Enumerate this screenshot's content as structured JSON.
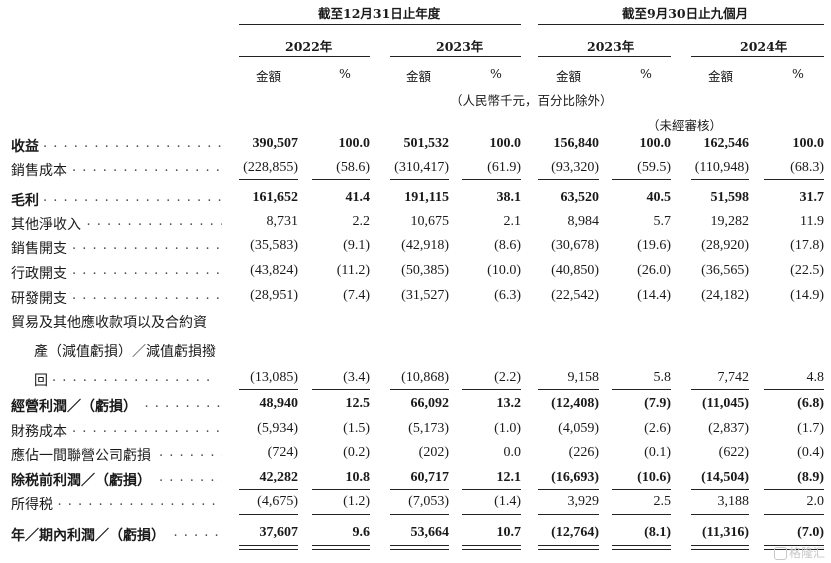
{
  "header": {
    "period_full_year": "截至12月31日止年度",
    "period_nine_months": "截至9月30日止九個月",
    "years": [
      "2022年",
      "2023年",
      "2023年",
      "2024年"
    ],
    "col_amount": "金額",
    "col_percent": "%",
    "unit_note": "（人民幣千元，百分比除外）",
    "unaudited": "（未經審核）"
  },
  "rows": [
    {
      "label": "收益",
      "bold": true,
      "vals": [
        "390,507",
        "100.0",
        "501,532",
        "100.0",
        "156,840",
        "100.0",
        "162,546",
        "100.0"
      ]
    },
    {
      "label": "銷售成本",
      "bold": false,
      "vals": [
        "(228,855)",
        "(58.6)",
        "(310,417)",
        "(61.9)",
        "(93,320)",
        "(59.5)",
        "(110,948)",
        "(68.3)"
      ]
    },
    {
      "label": "毛利",
      "bold": true,
      "vals": [
        "161,652",
        "41.4",
        "191,115",
        "38.1",
        "63,520",
        "40.5",
        "51,598",
        "31.7"
      ]
    },
    {
      "label": "其他淨收入",
      "bold": false,
      "vals": [
        "8,731",
        "2.2",
        "10,675",
        "2.1",
        "8,984",
        "5.7",
        "19,282",
        "11.9"
      ]
    },
    {
      "label": "銷售開支",
      "bold": false,
      "vals": [
        "(35,583)",
        "(9.1)",
        "(42,918)",
        "(8.6)",
        "(30,678)",
        "(19.6)",
        "(28,920)",
        "(17.8)"
      ]
    },
    {
      "label": "行政開支",
      "bold": false,
      "vals": [
        "(43,824)",
        "(11.2)",
        "(50,385)",
        "(10.0)",
        "(40,850)",
        "(26.0)",
        "(36,565)",
        "(22.5)"
      ]
    },
    {
      "label": "研發開支",
      "bold": false,
      "vals": [
        "(28,951)",
        "(7.4)",
        "(31,527)",
        "(6.3)",
        "(22,542)",
        "(14.4)",
        "(24,182)",
        "(14.9)"
      ]
    },
    {
      "label_lines": [
        "貿易及其他應收款項以及合約資",
        "產（減值虧損）／減值虧損撥",
        "回"
      ],
      "bold": false,
      "vals": [
        "(13,085)",
        "(3.4)",
        "(10,868)",
        "(2.2)",
        "9,158",
        "5.8",
        "7,742",
        "4.8"
      ]
    },
    {
      "label": "經營利潤／（虧損）",
      "bold": true,
      "vals": [
        "48,940",
        "12.5",
        "66,092",
        "13.2",
        "(12,408)",
        "(7.9)",
        "(11,045)",
        "(6.8)"
      ]
    },
    {
      "label": "財務成本",
      "bold": false,
      "vals": [
        "(5,934)",
        "(1.5)",
        "(5,173)",
        "(1.0)",
        "(4,059)",
        "(2.6)",
        "(2,837)",
        "(1.7)"
      ]
    },
    {
      "label": "應佔一間聯營公司虧損",
      "bold": false,
      "vals": [
        "(724)",
        "(0.2)",
        "(202)",
        "0.0",
        "(226)",
        "(0.1)",
        "(622)",
        "(0.4)"
      ]
    },
    {
      "label": "除税前利潤／（虧損）",
      "bold": true,
      "vals": [
        "42,282",
        "10.8",
        "60,717",
        "12.1",
        "(16,693)",
        "(10.6)",
        "(14,504)",
        "(8.9)"
      ]
    },
    {
      "label": "所得税",
      "bold": false,
      "vals": [
        "(4,675)",
        "(1.2)",
        "(7,053)",
        "(1.4)",
        "3,929",
        "2.5",
        "3,188",
        "2.0"
      ]
    },
    {
      "label": "年／期內利潤／（虧損）",
      "bold": true,
      "vals": [
        "37,607",
        "9.6",
        "53,664",
        "10.7",
        "(12,764)",
        "(8.1)",
        "(11,316)",
        "(7.0)"
      ]
    }
  ],
  "watermark": "格隆汇"
}
